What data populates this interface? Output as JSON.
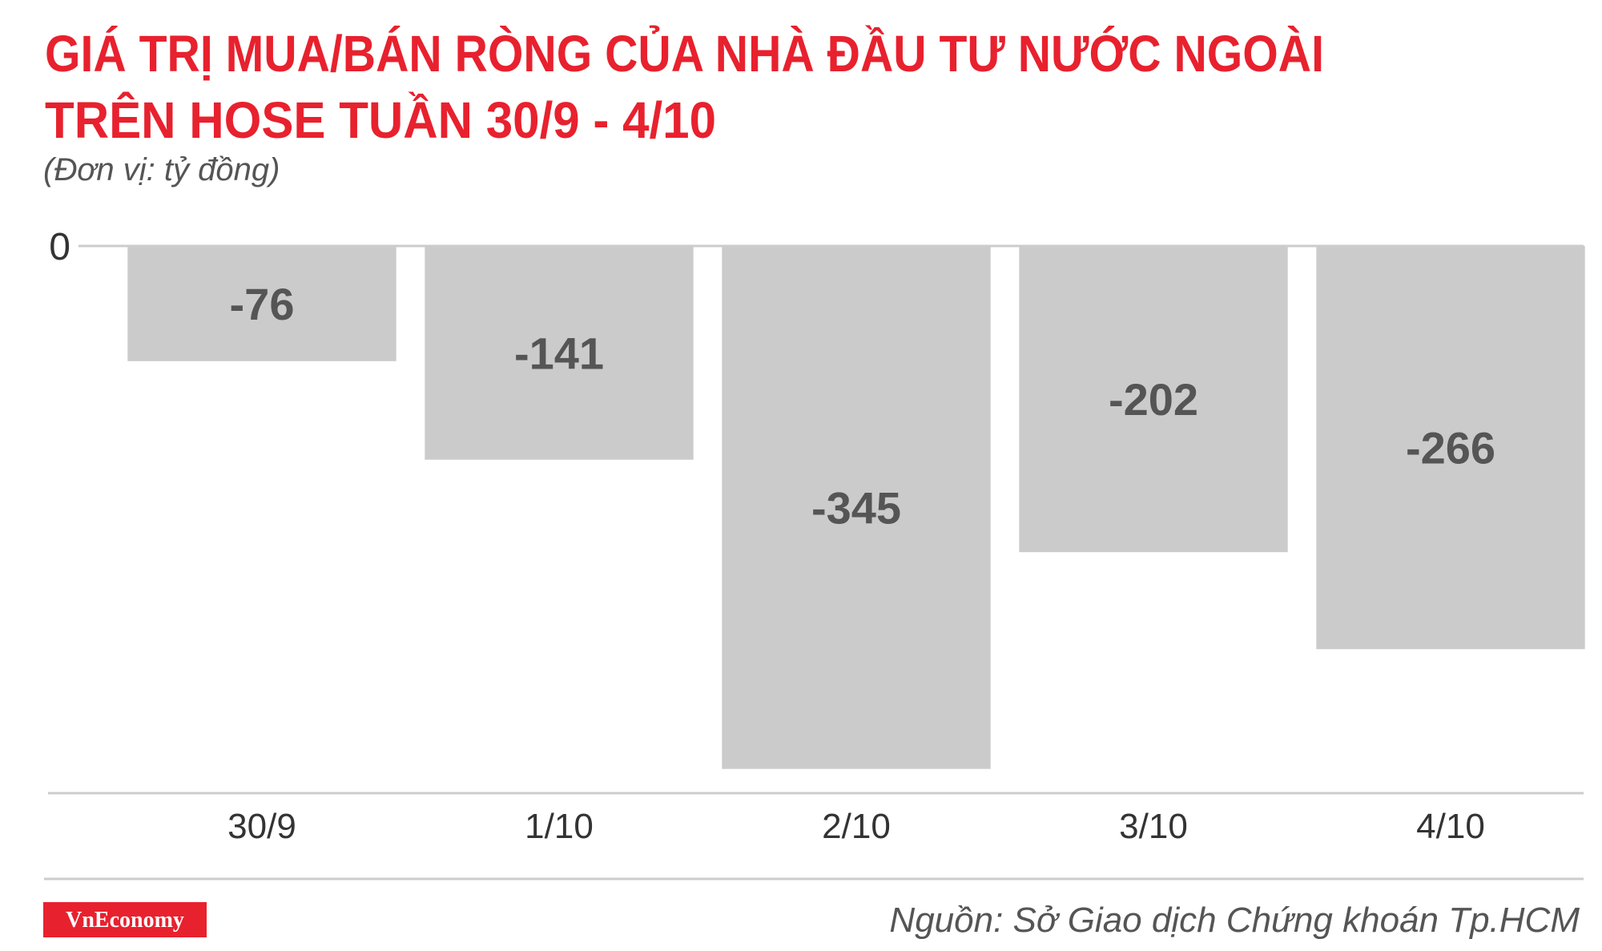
{
  "chart_data": {
    "type": "bar",
    "title": [
      "GIÁ TRỊ MUA/BÁN RÒNG CỦA NHÀ ĐẦU TƯ NƯỚC NGOÀI",
      "TRÊN HOSE TUẦN 30/9 - 4/10"
    ],
    "subtitle": "(Đơn vị: tỷ đồng)",
    "categories": [
      "30/9",
      "1/10",
      "2/10",
      "3/10",
      "4/10"
    ],
    "values": [
      -76,
      -141,
      -345,
      -202,
      -266
    ],
    "color": "#cccbcc",
    "ylim": [
      -361,
      0
    ],
    "yticks": [
      0
    ],
    "source": "Nguồn: Sở Giao dịch Chứng khoán Tp.HCM",
    "brand": "VnEconomy"
  }
}
